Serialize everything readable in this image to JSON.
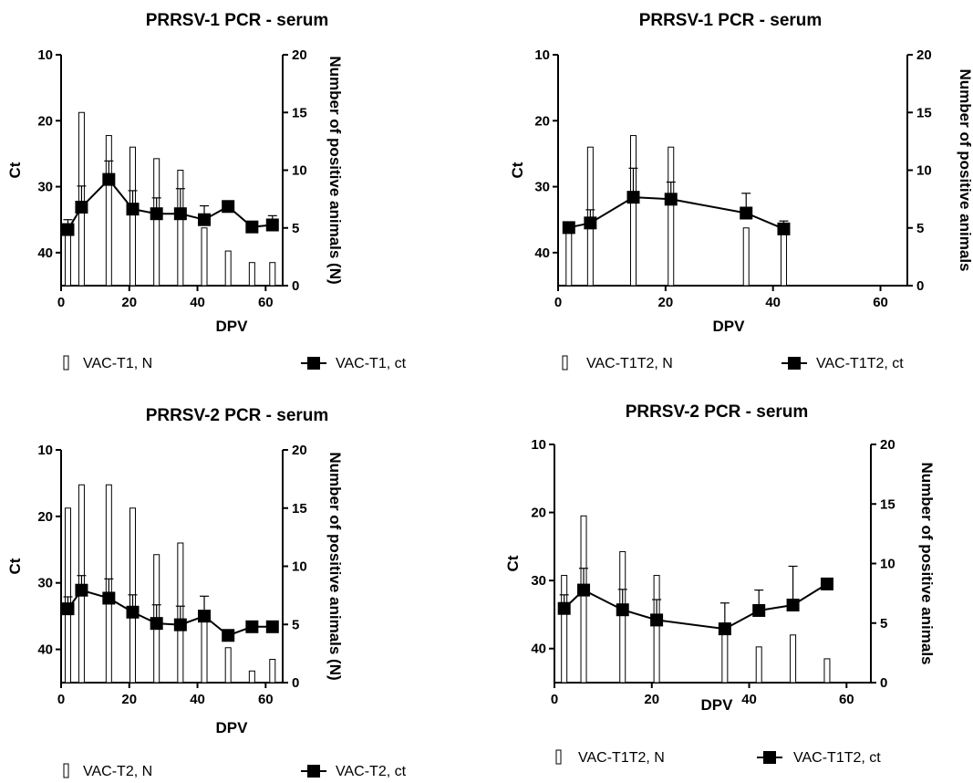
{
  "chart_data": [
    {
      "type": "bar+line",
      "title": "PRRSV-1 PCR - serum",
      "xlabel": "DPV",
      "ylabel_left": "Ct",
      "ylabel_right": "Number of positive animals (N)",
      "xlim": [
        0,
        65
      ],
      "xticks": [
        0,
        20,
        40,
        60
      ],
      "ylim_left": [
        10,
        45
      ],
      "yticks_left": [
        10,
        20,
        30,
        40
      ],
      "ylim_right": [
        0,
        20
      ],
      "yticks_right": [
        0,
        5,
        10,
        15,
        20
      ],
      "x": [
        2,
        6,
        14,
        21,
        28,
        35,
        42,
        49,
        56,
        62
      ],
      "series": [
        {
          "name": "VAC-T1, N",
          "kind": "bar",
          "axis": "right",
          "values": [
            5,
            15,
            13,
            12,
            11,
            10,
            5,
            3,
            2,
            2
          ]
        },
        {
          "name": "VAC-T1, ct",
          "kind": "line",
          "axis": "left",
          "values": [
            36.5,
            33.1,
            28.9,
            33.4,
            34.1,
            34.1,
            35,
            33,
            36.1,
            35.8
          ],
          "error": [
            1.5,
            3.2,
            2.8,
            2.8,
            2.4,
            3.8,
            2.1,
            null,
            null,
            1.4
          ]
        }
      ],
      "legend_position": "bottom"
    },
    {
      "type": "bar+line",
      "title": "PRRSV-1 PCR - serum",
      "xlabel": "DPV",
      "ylabel_left": "Ct",
      "ylabel_right": "Number of positive animals",
      "xlim": [
        0,
        65
      ],
      "xticks": [
        0,
        20,
        40,
        60
      ],
      "ylim_left": [
        10,
        45
      ],
      "yticks_left": [
        10,
        20,
        30,
        40
      ],
      "ylim_right": [
        0,
        20
      ],
      "yticks_right": [
        0,
        5,
        10,
        15,
        20
      ],
      "x": [
        2,
        6,
        14,
        21,
        35,
        42
      ],
      "series": [
        {
          "name": "VAC-T1T2, N",
          "kind": "bar",
          "axis": "right",
          "values": [
            5,
            12,
            13,
            12,
            5,
            5
          ]
        },
        {
          "name": "VAC-T1T2, ct",
          "kind": "line",
          "axis": "left",
          "values": [
            36.2,
            35.5,
            31.6,
            31.9,
            34.0,
            36.4
          ],
          "error": [
            0.8,
            2.0,
            4.4,
            2.6,
            3.0,
            1.2
          ]
        }
      ],
      "legend_position": "bottom"
    },
    {
      "type": "bar+line",
      "title": "PRRSV-2 PCR - serum",
      "xlabel": "DPV",
      "ylabel_left": "Ct",
      "ylabel_right": "Number of positive animals (N)",
      "xlim": [
        0,
        65
      ],
      "xticks": [
        0,
        20,
        40,
        60
      ],
      "ylim_left": [
        10,
        45
      ],
      "yticks_left": [
        10,
        20,
        30,
        40
      ],
      "ylim_right": [
        0,
        20
      ],
      "yticks_right": [
        0,
        5,
        10,
        15,
        20
      ],
      "x": [
        2,
        6,
        14,
        21,
        28,
        35,
        42,
        49,
        56,
        62
      ],
      "series": [
        {
          "name": "VAC-T2, N",
          "kind": "bar",
          "axis": "right",
          "values": [
            15,
            17,
            17,
            15,
            11,
            12,
            6,
            3,
            1,
            2
          ]
        },
        {
          "name": "VAC-T2, ct",
          "kind": "line",
          "axis": "left",
          "values": [
            33.9,
            31.1,
            32.3,
            34.4,
            36.1,
            36.3,
            35.0,
            37.9,
            36.6,
            36.6
          ],
          "error": [
            1.8,
            2.2,
            2.9,
            2.6,
            2.8,
            2.8,
            3.0,
            null,
            null,
            null
          ]
        }
      ],
      "legend_position": "bottom"
    },
    {
      "type": "bar+line",
      "title": "PRRSV-2 PCR - serum",
      "xlabel": "DPV",
      "ylabel_left": "Ct",
      "ylabel_right": "Number of positive animals",
      "xlim": [
        0,
        65
      ],
      "xticks": [
        0,
        20,
        40,
        60
      ],
      "ylim_left": [
        10,
        45
      ],
      "yticks_left": [
        10,
        20,
        30,
        40
      ],
      "ylim_right": [
        0,
        20
      ],
      "yticks_right": [
        0,
        5,
        10,
        15,
        20
      ],
      "x": [
        2,
        6,
        14,
        21,
        35,
        42,
        49,
        56
      ],
      "series": [
        {
          "name": "VAC-T1T2, N",
          "kind": "bar",
          "axis": "right",
          "values": [
            9,
            14,
            11,
            9,
            5,
            3,
            4,
            2
          ]
        },
        {
          "name": "VAC-T1T2, ct",
          "kind": "line",
          "axis": "left",
          "values": [
            34.1,
            31.4,
            34.3,
            35.8,
            37.1,
            34.4,
            33.6,
            30.5
          ],
          "error": [
            2.0,
            3.2,
            3.0,
            3.0,
            3.8,
            3.0,
            5.7,
            null
          ]
        }
      ],
      "legend_position": "bottom"
    }
  ]
}
